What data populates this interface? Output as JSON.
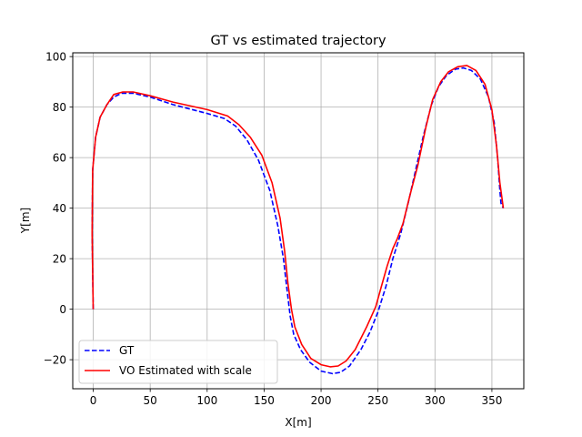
{
  "chart_data": {
    "type": "line",
    "title": "GT vs estimated trajectory",
    "xlabel": "X[m]",
    "ylabel": "Y[m]",
    "xlim": [
      -18,
      378
    ],
    "ylim": [
      -31.5,
      101.5
    ],
    "xticks": [
      0,
      50,
      100,
      150,
      200,
      250,
      300,
      350
    ],
    "yticks": [
      -20,
      0,
      20,
      40,
      60,
      80,
      100
    ],
    "tick_labels_x": [
      "0",
      "50",
      "100",
      "150",
      "200",
      "250",
      "300",
      "350"
    ],
    "tick_labels_y": [
      "−20",
      "0",
      "20",
      "40",
      "60",
      "80",
      "100"
    ],
    "grid": true,
    "legend_position": "lower-left",
    "series": [
      {
        "name": "GT",
        "color": "#0000ff",
        "style": "dashed",
        "x": [
          0,
          -1,
          -0.5,
          2,
          6,
          12,
          18,
          25,
          35,
          50,
          70,
          100,
          115,
          125,
          135,
          145,
          155,
          162,
          167,
          170,
          173,
          176,
          182,
          190,
          200,
          210,
          217,
          225,
          235,
          243,
          250,
          257,
          263,
          270,
          277,
          283,
          290,
          297,
          303,
          310,
          318,
          325,
          332,
          340,
          347,
          352,
          355,
          357,
          358,
          360
        ],
        "y": [
          0,
          30,
          55,
          68,
          76,
          81,
          84,
          85.5,
          85.5,
          84,
          81,
          77.5,
          75.5,
          72.5,
          67,
          59,
          47,
          33,
          20,
          8,
          -3,
          -10,
          -16,
          -21,
          -24.5,
          -25.5,
          -25,
          -22.5,
          -16,
          -9,
          -1,
          9,
          20,
          30,
          43,
          55,
          69,
          81,
          88,
          92.5,
          95,
          95.5,
          94.5,
          91,
          84,
          74,
          60,
          47,
          42,
          40
        ]
      },
      {
        "name": "VO Estimated with scale",
        "color": "#ff0000",
        "style": "solid",
        "x": [
          0,
          -1,
          -0.5,
          2,
          6,
          12,
          18,
          26,
          35,
          50,
          70,
          100,
          118,
          128,
          138,
          148,
          157,
          164,
          168,
          171,
          174,
          177,
          183,
          191,
          200,
          208,
          215,
          222,
          230,
          240,
          248,
          253,
          258,
          263,
          267,
          272,
          278,
          285,
          292,
          298,
          305,
          312,
          320,
          328,
          336,
          344,
          350,
          354,
          357,
          360
        ],
        "y": [
          0,
          30,
          55,
          68,
          76,
          81,
          85,
          86,
          86,
          84.5,
          82,
          79,
          76.5,
          73,
          68,
          61,
          50,
          36,
          23,
          10,
          0,
          -7,
          -14,
          -19.5,
          -22,
          -22.8,
          -22.5,
          -20.5,
          -16,
          -7,
          1,
          9,
          17,
          24,
          28,
          34,
          45,
          57,
          72,
          83,
          90,
          94,
          96,
          96.5,
          94.5,
          89,
          79,
          65,
          50,
          40
        ]
      }
    ]
  }
}
